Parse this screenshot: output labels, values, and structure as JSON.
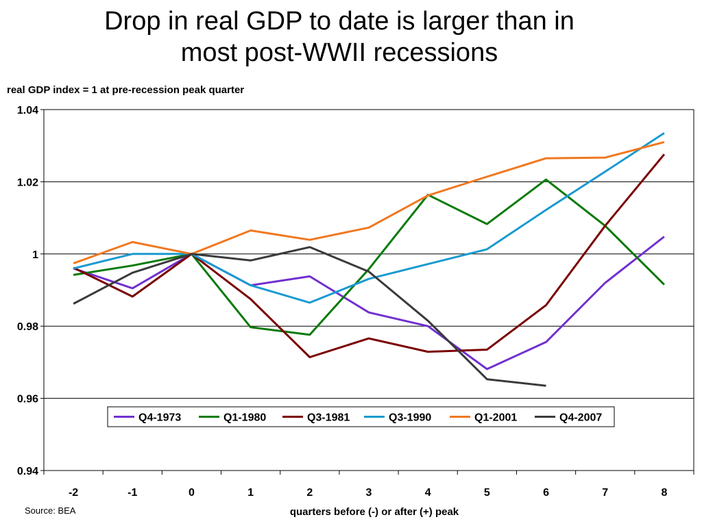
{
  "title_lines": [
    "Drop in real GDP to date is larger than in",
    "most post-WWII recessions"
  ],
  "source": "Source: BEA",
  "chart_data": {
    "type": "line",
    "title": "Drop in real GDP to date is larger than in most post-WWII recessions",
    "ylabel": "real GDP index = 1 at pre-recession peak quarter",
    "xlabel": "quarters before (-) or after (+) peak",
    "x": [
      -2,
      -1,
      0,
      1,
      2,
      3,
      4,
      5,
      6,
      7,
      8
    ],
    "x_tick_labels": [
      "-2",
      "-1",
      "0",
      "1",
      "2",
      "3",
      "4",
      "5",
      "6",
      "7",
      "8"
    ],
    "ylim": [
      0.94,
      1.04
    ],
    "y_ticks": [
      0.94,
      0.96,
      0.98,
      1.0,
      1.02,
      1.04
    ],
    "y_tick_labels": [
      "0.94",
      "0.96",
      "0.98",
      "1",
      "1.02",
      "1.04"
    ],
    "grid": "horizontal",
    "legend_position": "inside-bottom",
    "series": [
      {
        "name": "Q4-1973",
        "color": "#7030d0",
        "values": [
          0.996,
          0.9905,
          1.0,
          0.9913,
          0.9938,
          0.9838,
          0.98,
          0.9681,
          0.9756,
          0.992,
          1.0048
        ]
      },
      {
        "name": "Q1-1980",
        "color": "#0a7a0a",
        "values": [
          0.9942,
          0.9968,
          1.0,
          0.9797,
          0.9776,
          0.9958,
          1.0164,
          1.0083,
          1.0206,
          1.0078,
          0.9915
        ]
      },
      {
        "name": "Q3-1981",
        "color": "#7a0000",
        "values": [
          0.9962,
          0.9882,
          1.0,
          0.9875,
          0.9714,
          0.9766,
          0.9729,
          0.9735,
          0.9858,
          1.0078,
          1.0276
        ]
      },
      {
        "name": "Q3-1990",
        "color": "#1a9ad0",
        "values": [
          0.996,
          1.0,
          1.0,
          0.9913,
          0.9865,
          0.9931,
          0.9972,
          1.0013,
          1.0122,
          1.0228,
          1.0335
        ]
      },
      {
        "name": "Q1-2001",
        "color": "#f07820",
        "values": [
          0.9974,
          1.0033,
          1.0,
          1.0065,
          1.0039,
          1.0073,
          1.0162,
          1.0214,
          1.0265,
          1.0267,
          1.031
        ]
      },
      {
        "name": "Q4-2007",
        "color": "#3a3a3a",
        "values": [
          0.9862,
          0.9948,
          1.0,
          0.9982,
          1.0019,
          0.9951,
          0.9815,
          0.9653,
          0.9635,
          null,
          null
        ]
      }
    ]
  }
}
